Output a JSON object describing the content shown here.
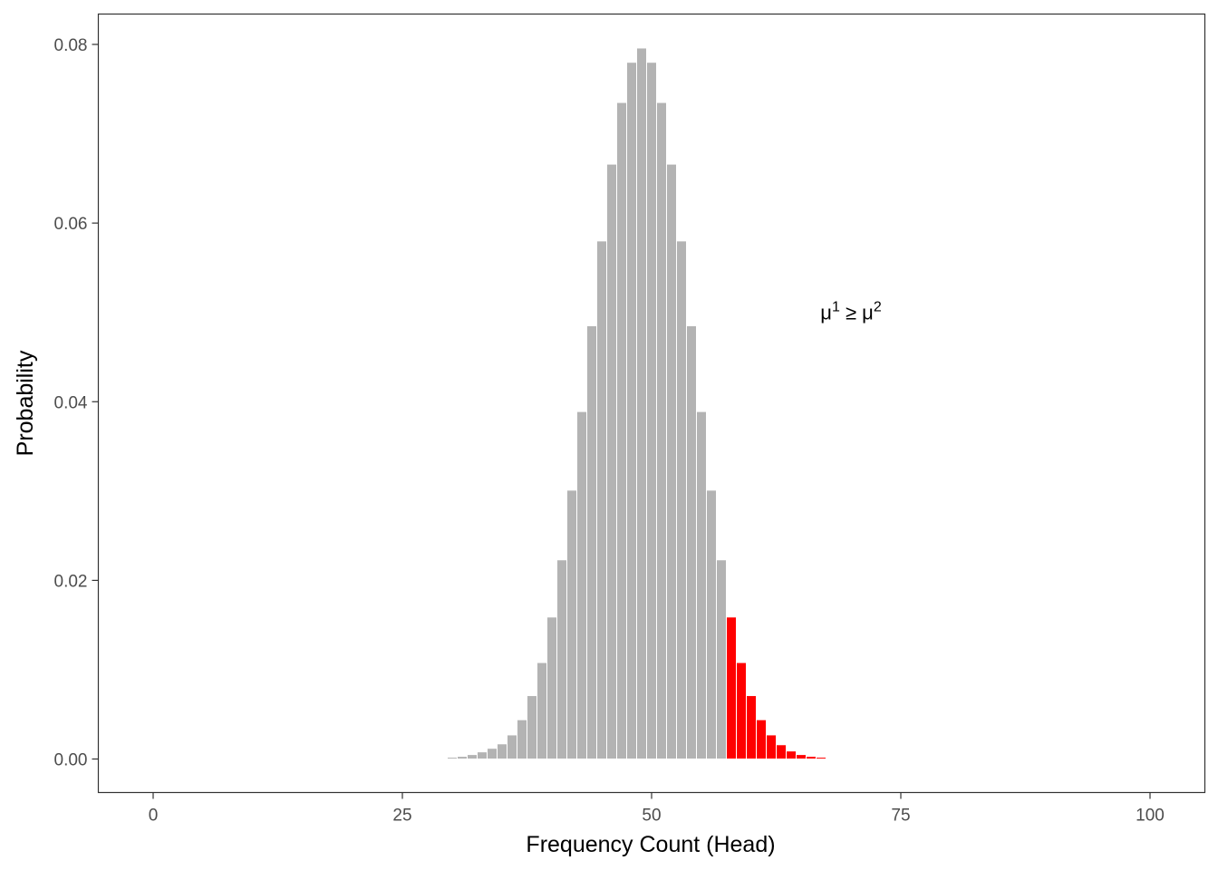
{
  "chart_data": {
    "type": "bar",
    "x": [
      29,
      30,
      31,
      32,
      33,
      34,
      35,
      36,
      37,
      38,
      39,
      40,
      41,
      42,
      43,
      44,
      45,
      46,
      47,
      48,
      49,
      50,
      51,
      52,
      53,
      54,
      55,
      56,
      57,
      58,
      59,
      60,
      61,
      62,
      63,
      64,
      65,
      66,
      67,
      68,
      69,
      70,
      71,
      72,
      73
    ],
    "values": [
      0.0001,
      0.0002,
      0.0003,
      0.0005,
      0.0008,
      0.0012,
      0.0017,
      0.0027,
      0.0044,
      0.0071,
      0.0108,
      0.0159,
      0.0223,
      0.0301,
      0.0389,
      0.0485,
      0.058,
      0.0666,
      0.0735,
      0.078,
      0.0796,
      0.078,
      0.0735,
      0.0666,
      0.058,
      0.0485,
      0.0389,
      0.0301,
      0.0223,
      0.0159,
      0.0108,
      0.0071,
      0.0044,
      0.0027,
      0.0016,
      0.0009,
      0.0005,
      0.0003,
      0.0002,
      0.0001,
      0.0001,
      0.0,
      0.0,
      0.0,
      0.0
    ],
    "highlight_from_x": 58,
    "colors": {
      "base": "#b3b3b3",
      "highlight": "#ff0000"
    },
    "xlabel": "Frequency Count (Head)",
    "ylabel": "Probability",
    "xlim": [
      -5.5,
      105.5
    ],
    "ylim": [
      -0.00375,
      0.0834
    ],
    "xticks": [
      0,
      25,
      50,
      75,
      100
    ],
    "xtick_labels": [
      "0",
      "25",
      "50",
      "75",
      "100"
    ],
    "yticks": [
      0.0,
      0.02,
      0.04,
      0.06,
      0.08
    ],
    "ytick_labels": [
      "0.00",
      "0.02",
      "0.04",
      "0.06",
      "0.08"
    ],
    "grid": false,
    "annotation": {
      "base1": "μ",
      "sup1": "1",
      "op": " ≥ ",
      "base2": "μ",
      "sup2": "2",
      "x": 70,
      "y": 0.05
    }
  }
}
